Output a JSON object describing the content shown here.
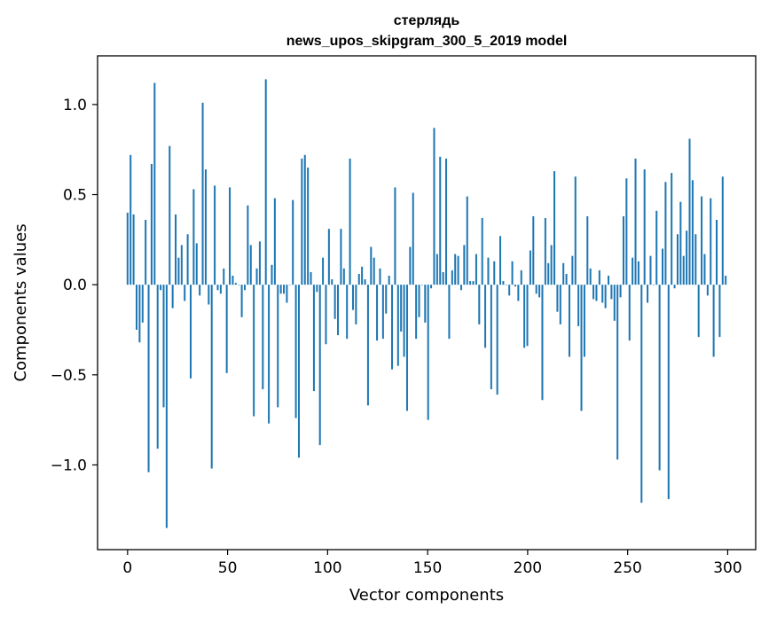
{
  "chart_data": {
    "type": "bar",
    "title": "стерлядь",
    "subtitle": "news_upos_skipgram_300_5_2019 model",
    "xlabel": "Vector components",
    "ylabel": "Components values",
    "xlim": [
      -15,
      314
    ],
    "ylim": [
      -1.47,
      1.27
    ],
    "xticks": [
      0,
      50,
      100,
      150,
      200,
      250,
      300
    ],
    "yticks": [
      -1.0,
      -0.5,
      0.0,
      0.5,
      1.0
    ],
    "ytick_labels": [
      "−1.0",
      "−0.5",
      "0.0",
      "0.5",
      "1.0"
    ],
    "bar_color": "#1f77b4",
    "grid": false,
    "values": [
      0.4,
      0.72,
      0.39,
      -0.25,
      -0.32,
      -0.21,
      0.36,
      -1.04,
      0.67,
      1.12,
      -0.91,
      -0.03,
      -0.68,
      -1.35,
      0.77,
      -0.13,
      0.39,
      0.15,
      0.22,
      -0.09,
      0.28,
      -0.52,
      0.53,
      0.23,
      -0.06,
      1.01,
      0.64,
      -0.11,
      -1.02,
      0.55,
      -0.03,
      -0.05,
      0.09,
      -0.49,
      0.54,
      0.05,
      0.01,
      0.0,
      -0.18,
      -0.03,
      0.44,
      0.22,
      -0.73,
      0.09,
      0.24,
      -0.58,
      1.14,
      -0.77,
      0.11,
      0.48,
      -0.68,
      -0.05,
      -0.05,
      -0.1,
      0.0,
      0.47,
      -0.74,
      -0.96,
      0.7,
      0.72,
      0.65,
      0.07,
      -0.59,
      -0.04,
      -0.89,
      0.15,
      -0.33,
      0.31,
      0.03,
      -0.19,
      -0.28,
      0.31,
      0.09,
      -0.3,
      0.7,
      -0.14,
      -0.22,
      0.06,
      0.1,
      0.03,
      -0.67,
      0.21,
      0.15,
      -0.31,
      0.09,
      -0.3,
      -0.16,
      0.05,
      -0.47,
      0.54,
      -0.45,
      -0.26,
      -0.4,
      -0.7,
      0.21,
      0.51,
      -0.3,
      -0.18,
      0.0,
      -0.21,
      -0.75,
      -0.02,
      0.87,
      0.17,
      0.71,
      0.07,
      0.7,
      -0.3,
      0.08,
      0.17,
      0.16,
      -0.03,
      0.22,
      0.49,
      0.02,
      0.02,
      0.17,
      -0.22,
      0.37,
      -0.35,
      0.15,
      -0.58,
      0.13,
      -0.61,
      0.27,
      0.02,
      0.0,
      -0.06,
      0.13,
      -0.01,
      -0.09,
      0.08,
      -0.35,
      -0.34,
      0.19,
      0.38,
      -0.05,
      -0.07,
      -0.64,
      0.37,
      0.12,
      0.22,
      0.63,
      -0.15,
      -0.22,
      0.12,
      0.06,
      -0.4,
      0.16,
      0.6,
      -0.23,
      -0.7,
      -0.4,
      0.38,
      0.09,
      -0.08,
      -0.09,
      0.08,
      -0.1,
      -0.13,
      0.05,
      -0.08,
      -0.2,
      -0.97,
      -0.07,
      0.38,
      0.59,
      -0.31,
      0.15,
      0.7,
      0.13,
      -1.21,
      0.64,
      -0.1,
      0.16,
      0.0,
      0.41,
      -1.03,
      0.2,
      0.57,
      -1.19,
      0.62,
      -0.02,
      0.28,
      0.46,
      0.16,
      0.3,
      0.81,
      0.58,
      0.28,
      -0.29,
      0.49,
      0.17,
      -0.06,
      0.48,
      -0.4,
      0.36,
      -0.29,
      0.6,
      0.05
    ]
  }
}
